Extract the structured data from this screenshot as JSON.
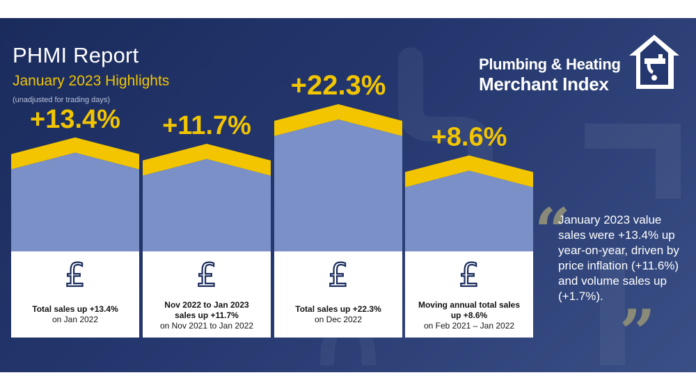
{
  "header": {
    "title": "PHMI Report",
    "subtitle": "January 2023 Highlights",
    "note": "(unadjusted for trading days)"
  },
  "logo": {
    "line1": "Plumbing & Heating",
    "line2": "Merchant Index",
    "icon": "house-tap-icon"
  },
  "quote": {
    "open_mark": "“",
    "close_mark": "”",
    "text": "January 2023 value sales were +13.4% up year-on-year, driven by price inflation (+11.6%) and volume sales up (+1.7%)."
  },
  "colors": {
    "background": "#1a2b5c",
    "accent": "#f2c500",
    "bar_fill": "#7a90c6",
    "card": "#ffffff"
  },
  "chart_data": {
    "type": "bar",
    "title": "",
    "xlabel": "",
    "ylabel": "",
    "categories": [
      "Total sales up +13.4% on Jan 2022",
      "Nov 2022 to Jan 2023 sales up +11.7% on Nov 2021 to Jan 2022",
      "Total sales up +22.3% on Dec 2022",
      "Moving annual total sales up +8.6% on Feb 2021 – Jan 2022"
    ],
    "values": [
      13.4,
      11.7,
      22.3,
      8.6
    ],
    "labels": [
      "+13.4%",
      "+11.7%",
      "+22.3%",
      "+8.6%"
    ],
    "ylim": [
      0,
      22.3
    ],
    "unit": "%",
    "icon": "pound-icon",
    "captions": [
      {
        "bold": "Total sales up +13.4%",
        "normal": "on Jan 2022"
      },
      {
        "bold": "Nov 2022 to Jan 2023 sales up +11.7%",
        "normal": "on Nov 2021 to Jan 2022"
      },
      {
        "bold": "Total sales up +22.3%",
        "normal": "on Dec 2022"
      },
      {
        "bold": "Moving annual total sales up +8.6%",
        "normal": "on Feb 2021 – Jan 2022"
      }
    ]
  }
}
